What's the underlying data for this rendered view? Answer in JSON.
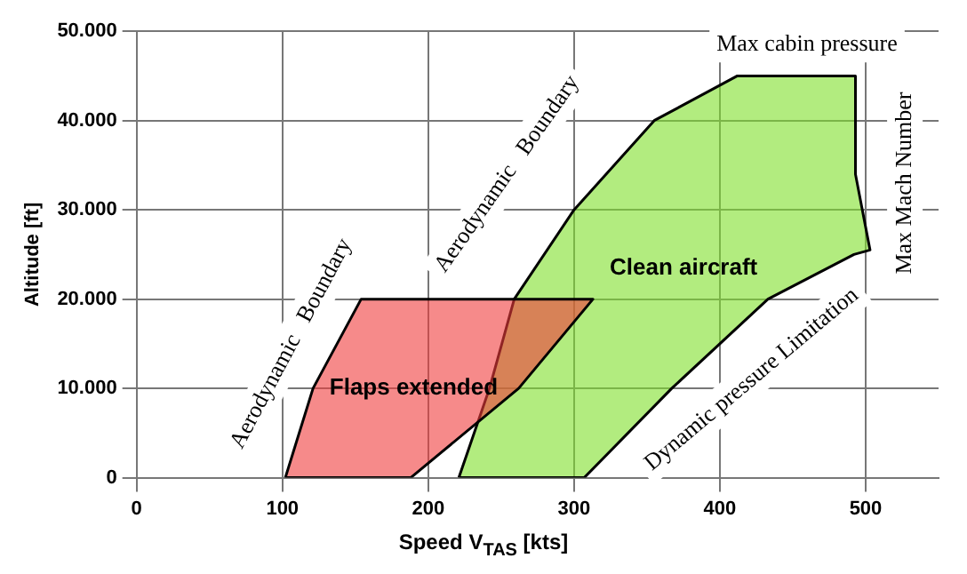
{
  "chart_data": {
    "type": "area",
    "xlabel": "Speed V$_{TAS}$ [kts]",
    "ylabel": "Altitude [ft]",
    "series": [
      {
        "name": "Flaps extended",
        "color": "#f03c3c",
        "x": [
          102,
          121,
          154,
          313,
          262,
          188,
          102
        ],
        "values": [
          0,
          10000,
          20000,
          20000,
          10000,
          0,
          0
        ]
      },
      {
        "name": "Clean aircraft",
        "color": "#7ee02a",
        "x": [
          221,
          242,
          259,
          300,
          355,
          412,
          493,
          493,
          503,
          492,
          433,
          367,
          307,
          221
        ],
        "values": [
          0,
          10000,
          20000,
          30000,
          40000,
          45000,
          45000,
          34000,
          25500,
          25000,
          20000,
          10000,
          0,
          0
        ]
      }
    ],
    "xlim": [
      0,
      550
    ],
    "xticks": [
      0,
      100,
      200,
      300,
      400,
      500
    ],
    "ylim": [
      0,
      50000
    ],
    "yticks": [
      {
        "value": 0,
        "label": "0"
      },
      {
        "value": 10000,
        "label": "10.000"
      },
      {
        "value": 20000,
        "label": "20.000"
      },
      {
        "value": 30000,
        "label": "30.000"
      },
      {
        "value": 40000,
        "label": "40.000"
      },
      {
        "value": 50000,
        "label": "50.000"
      }
    ],
    "grid": true,
    "legend": false,
    "annotations": [
      "Aerodynamic   Boundary",
      "Aerodynamic   Boundary",
      "Max cabin pressure",
      "Max Mach Number",
      "Dynamic pressure Limitation"
    ]
  }
}
